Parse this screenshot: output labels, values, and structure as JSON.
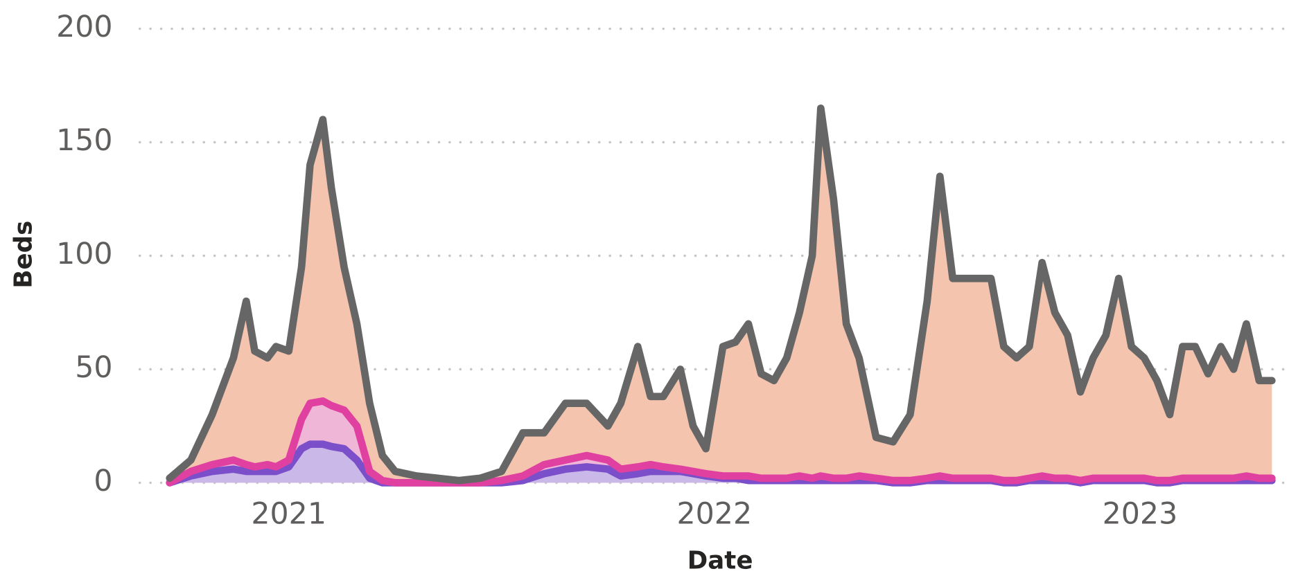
{
  "chart_data": {
    "type": "area",
    "ylabel": "Beds",
    "xlabel": "Date",
    "x": [
      2020.72,
      2020.77,
      2020.82,
      2020.87,
      2020.9,
      2020.92,
      2020.95,
      2020.97,
      2021.0,
      2021.03,
      2021.05,
      2021.08,
      2021.1,
      2021.13,
      2021.16,
      2021.19,
      2021.22,
      2021.25,
      2021.3,
      2021.35,
      2021.4,
      2021.45,
      2021.5,
      2021.55,
      2021.6,
      2021.65,
      2021.7,
      2021.75,
      2021.78,
      2021.82,
      2021.85,
      2021.88,
      2021.92,
      2021.95,
      2021.98,
      2022.02,
      2022.05,
      2022.08,
      2022.11,
      2022.14,
      2022.17,
      2022.2,
      2022.23,
      2022.25,
      2022.28,
      2022.31,
      2022.34,
      2022.38,
      2022.42,
      2022.46,
      2022.5,
      2022.53,
      2022.56,
      2022.59,
      2022.62,
      2022.65,
      2022.68,
      2022.71,
      2022.74,
      2022.77,
      2022.8,
      2022.83,
      2022.86,
      2022.89,
      2022.92,
      2022.95,
      2022.98,
      2023.01,
      2023.04,
      2023.07,
      2023.1,
      2023.13,
      2023.16,
      2023.19,
      2023.22,
      2023.25,
      2023.28,
      2023.31
    ],
    "series": [
      {
        "color": "#666666",
        "area_color": "#f5c4ae",
        "values": [
          2,
          10,
          30,
          55,
          80,
          58,
          55,
          60,
          58,
          95,
          140,
          160,
          130,
          95,
          70,
          35,
          12,
          5,
          3,
          2,
          1,
          2,
          5,
          22,
          22,
          35,
          35,
          25,
          35,
          60,
          38,
          38,
          50,
          25,
          15,
          60,
          62,
          70,
          48,
          45,
          55,
          75,
          100,
          165,
          125,
          70,
          55,
          20,
          18,
          30,
          80,
          135,
          90,
          90,
          90,
          90,
          60,
          55,
          60,
          97,
          75,
          65,
          40,
          55,
          65,
          90,
          60,
          55,
          45,
          30,
          60,
          60,
          48,
          60,
          50,
          70,
          45,
          45
        ]
      },
      {
        "color": "#e040a0",
        "area_color": "#f0b6d8",
        "values": [
          0,
          5,
          8,
          10,
          8,
          7,
          8,
          7,
          10,
          28,
          35,
          36,
          34,
          32,
          25,
          5,
          1,
          0,
          0,
          0,
          0,
          0,
          1,
          3,
          8,
          10,
          12,
          10,
          6,
          7,
          8,
          7,
          6,
          5,
          4,
          3,
          3,
          3,
          2,
          2,
          2,
          3,
          2,
          3,
          2,
          2,
          3,
          2,
          1,
          1,
          2,
          3,
          2,
          2,
          2,
          2,
          1,
          1,
          2,
          3,
          2,
          2,
          1,
          2,
          2,
          2,
          2,
          2,
          1,
          1,
          2,
          2,
          2,
          2,
          2,
          3,
          2,
          2
        ]
      },
      {
        "color": "#7b4fc9",
        "area_color": "#c9b8e8",
        "values": [
          0,
          3,
          5,
          6,
          5,
          5,
          5,
          5,
          7,
          15,
          17,
          17,
          16,
          15,
          10,
          2,
          0,
          0,
          0,
          0,
          0,
          0,
          0,
          1,
          4,
          6,
          7,
          6,
          3,
          4,
          5,
          5,
          5,
          4,
          3,
          2,
          2,
          1,
          1,
          1,
          1,
          1,
          1,
          1,
          1,
          1,
          1,
          1,
          0,
          0,
          1,
          1,
          1,
          1,
          1,
          1,
          0,
          0,
          1,
          1,
          1,
          1,
          0,
          1,
          1,
          1,
          1,
          1,
          0,
          0,
          1,
          1,
          1,
          1,
          1,
          1,
          1,
          1
        ]
      }
    ],
    "xlim": [
      2020.65,
      2023.35
    ],
    "xticks": [
      2021,
      2022,
      2023
    ],
    "ylim": [
      0,
      200
    ],
    "yticks": [
      0,
      50,
      100,
      150,
      200
    ],
    "grid": true
  }
}
